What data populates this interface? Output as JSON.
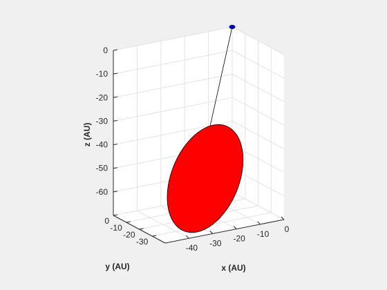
{
  "chart_data": {
    "type": "3d-line",
    "xlabel": "x (AU)",
    "ylabel": "y (AU)",
    "zlabel": "z (AU)",
    "xlim": [
      -50,
      0
    ],
    "ylim": [
      -40,
      0
    ],
    "zlim": [
      -70,
      0
    ],
    "xticks": [
      -40,
      -30,
      -20,
      -10,
      0
    ],
    "yticks": [
      0,
      -10,
      -20,
      -30
    ],
    "zticks": [
      0,
      -10,
      -20,
      -30,
      -40,
      -50,
      -60
    ],
    "grid": true,
    "series": [
      {
        "kind": "line",
        "color": "#000000",
        "points": [
          {
            "x": 0,
            "y": 0,
            "z": 0
          },
          {
            "x": -22,
            "y": -20,
            "z": -40
          }
        ]
      }
    ],
    "markers": [
      {
        "x": 0,
        "y": 0,
        "z": 0,
        "color": "#0000ad"
      }
    ],
    "surface": {
      "kind": "disk",
      "fill": "#ff0000",
      "edge": "#000000",
      "center": {
        "x": -25,
        "y": -25,
        "z": -52
      },
      "radius_x": 14,
      "radius_z": 24
    }
  }
}
